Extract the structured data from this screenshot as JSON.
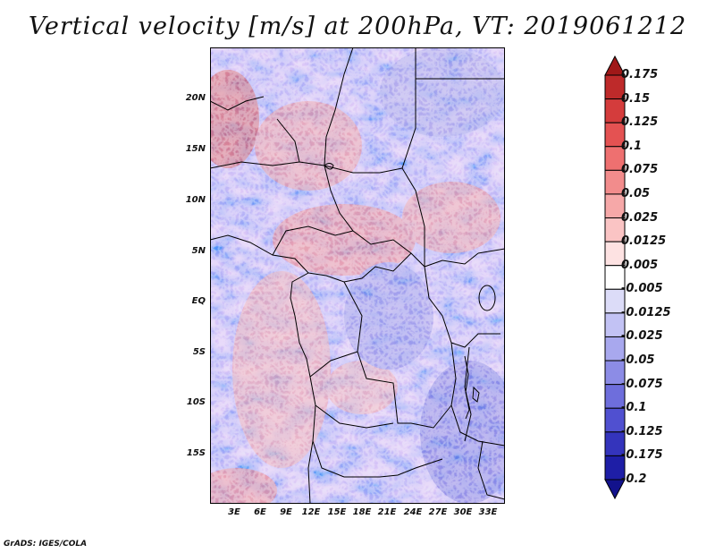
{
  "title": "Vertical velocity [m/s] at 200hPa, VT: 2019061212",
  "footer": "GrADS: IGES/COLA",
  "map": {
    "region": "Central Africa",
    "latitude_labels": [
      "20N",
      "15N",
      "10N",
      "5N",
      "EQ",
      "5S",
      "10S",
      "15S"
    ],
    "longitude_labels": [
      "3E",
      "6E",
      "9E",
      "12E",
      "15E",
      "18E",
      "21E",
      "24E",
      "27E",
      "30E",
      "33E"
    ]
  },
  "colorbar": {
    "labels": [
      "0.175",
      "0.15",
      "0.125",
      "0.1",
      "0.075",
      "0.05",
      "0.025",
      "0.0125",
      "0.005",
      "-0.005",
      "-0.0125",
      "-0.025",
      "-0.05",
      "-0.075",
      "-0.1",
      "-0.125",
      "-0.175",
      "-0.2"
    ],
    "colors": [
      "#a01818",
      "#be2a2a",
      "#d43c3c",
      "#e45252",
      "#ee7070",
      "#f28c8c",
      "#f6a8a8",
      "#fac4c4",
      "#fde2e2",
      "#ffffff",
      "#dcdcf8",
      "#c2c2f4",
      "#a8a8ee",
      "#8c8ce6",
      "#6e6edc",
      "#5050d0",
      "#3434bc",
      "#1e1ea6",
      "#12128c"
    ]
  }
}
